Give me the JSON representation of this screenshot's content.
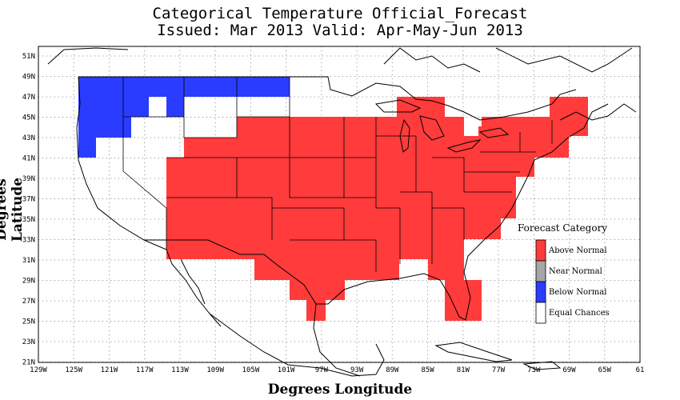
{
  "title_line1": "Categorical Temperature Official_Forecast",
  "title_line2": "Issued: Mar 2013 Valid: Apr-May-Jun 2013",
  "ylabel": "Degrees Latitude",
  "xlabel": "Degrees Longitude",
  "lon_ticks": [
    "129W",
    "125W",
    "121W",
    "117W",
    "113W",
    "109W",
    "105W",
    "101W",
    "97W",
    "93W",
    "89W",
    "85W",
    "81W",
    "77W",
    "73W",
    "69W",
    "65W",
    "61"
  ],
  "lat_ticks": [
    "51N",
    "49N",
    "47N",
    "45N",
    "43N",
    "41N",
    "39N",
    "37N",
    "35N",
    "33N",
    "31N",
    "29N",
    "27N",
    "25N",
    "23N",
    "21N"
  ],
  "legend": {
    "title": "Forecast Category",
    "items": [
      {
        "label": "Above Normal",
        "color": "#ff3b3b"
      },
      {
        "label": "Near Normal",
        "color": "#a6a6a6"
      },
      {
        "label": "Below Normal",
        "color": "#2a3cff"
      },
      {
        "label": "Equal Chances",
        "color": "#ffffff"
      }
    ]
  },
  "colors": {
    "above": "#ff3b3b",
    "below": "#2a3cff",
    "grid": "#888888"
  }
}
